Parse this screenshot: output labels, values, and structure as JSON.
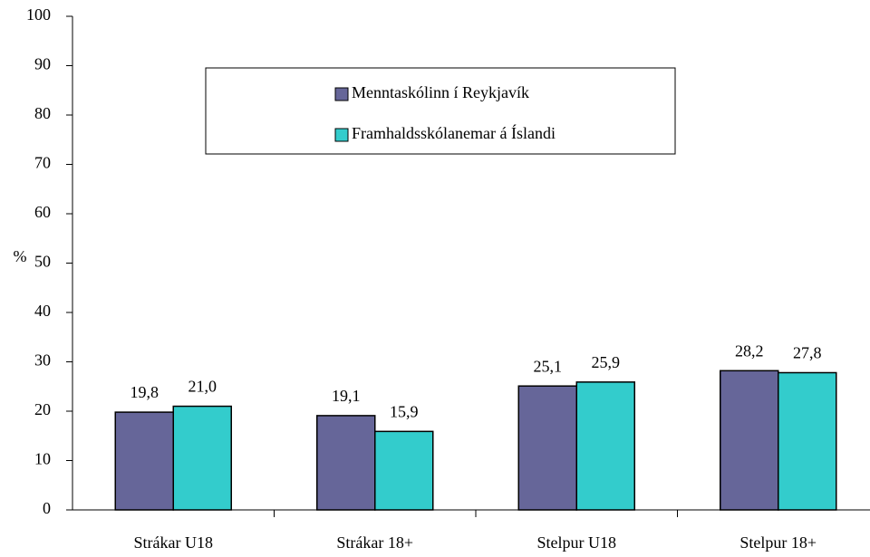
{
  "chart_data": {
    "type": "bar",
    "y_label": "%",
    "categories": [
      "Strákar U18",
      "Strákar 18+",
      "Stelpur U18",
      "Stelpur 18+"
    ],
    "series": [
      {
        "name": "Menntaskólinn í Reykjavík",
        "color": "#666699",
        "values": [
          19.8,
          19.1,
          25.1,
          28.2
        ],
        "value_labels": [
          "19,8",
          "19,1",
          "25,1",
          "28,2"
        ]
      },
      {
        "name": "Framhaldsskólanemar á Íslandi",
        "color": "#33cccc",
        "values": [
          21.0,
          15.9,
          25.9,
          27.8
        ],
        "value_labels": [
          "21,0",
          "15,9",
          "25,9",
          "27,8"
        ]
      }
    ],
    "ylim": [
      0,
      100
    ],
    "yticks": [
      0,
      10,
      20,
      30,
      40,
      50,
      60,
      70,
      80,
      90,
      100
    ],
    "grid": false,
    "legend": "top"
  }
}
